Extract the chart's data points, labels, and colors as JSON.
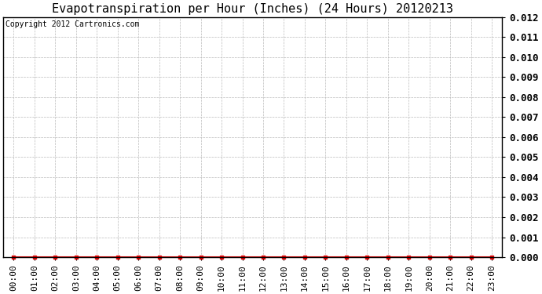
{
  "title": "Evapotranspiration per Hour (Inches) (24 Hours) 20120213",
  "copyright_text": "Copyright 2012 Cartronics.com",
  "x_labels": [
    "00:00",
    "01:00",
    "02:00",
    "03:00",
    "04:00",
    "05:00",
    "06:00",
    "07:00",
    "08:00",
    "09:00",
    "10:00",
    "11:00",
    "12:00",
    "13:00",
    "14:00",
    "15:00",
    "16:00",
    "17:00",
    "18:00",
    "19:00",
    "20:00",
    "21:00",
    "22:00",
    "23:00"
  ],
  "y_values": [
    0,
    0,
    0,
    0,
    0,
    0,
    0,
    0,
    0,
    0,
    0,
    0,
    0,
    0,
    0,
    0,
    0,
    0,
    0,
    0,
    0,
    0,
    0,
    0
  ],
  "ylim": [
    0,
    0.012
  ],
  "yticks": [
    0.0,
    0.001,
    0.002,
    0.003,
    0.004,
    0.005,
    0.006,
    0.007,
    0.008,
    0.009,
    0.01,
    0.011,
    0.012
  ],
  "line_color": "#dd0000",
  "marker_color": "#dd0000",
  "marker": "s",
  "marker_size": 3,
  "bg_color": "#ffffff",
  "plot_bg_color": "#ffffff",
  "grid_color": "#bbbbbb",
  "border_color": "#000000",
  "title_fontsize": 11,
  "copyright_fontsize": 7,
  "tick_fontsize": 8,
  "ytick_fontsize": 9
}
